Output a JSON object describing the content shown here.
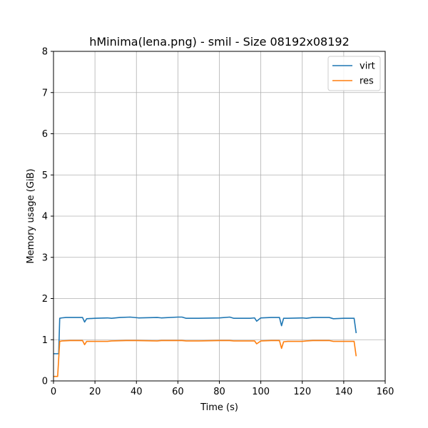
{
  "chart_data": {
    "type": "line",
    "title": "hMinima(lena.png) - smil - Size 08192x08192",
    "xlabel": "Time (s)",
    "ylabel": "Memory usage (GiB)",
    "xlim": [
      0,
      160
    ],
    "ylim": [
      0,
      8
    ],
    "xticks": [
      0,
      20,
      40,
      60,
      80,
      100,
      120,
      140,
      160
    ],
    "yticks": [
      0,
      1,
      2,
      3,
      4,
      5,
      6,
      7,
      8
    ],
    "xtick_labels": [
      "0",
      "20",
      "40",
      "60",
      "80",
      "100",
      "120",
      "140",
      "160"
    ],
    "ytick_labels": [
      "0",
      "1",
      "2",
      "3",
      "4",
      "5",
      "6",
      "7",
      "8"
    ],
    "grid": true,
    "legend_position": "top-right",
    "series": [
      {
        "name": "virt",
        "color": "#1f77b4",
        "x": [
          0,
          2.5,
          3,
          4,
          6,
          10,
          14,
          15,
          16,
          20,
          26,
          28,
          32,
          37,
          41,
          50,
          52,
          60,
          62,
          64,
          70,
          80,
          85,
          87,
          95,
          97,
          98,
          100,
          105,
          109,
          110,
          111,
          113,
          120,
          122,
          125,
          133,
          135,
          140,
          145,
          146
        ],
        "y": [
          0.66,
          0.66,
          1.52,
          1.53,
          1.54,
          1.54,
          1.54,
          1.43,
          1.51,
          1.52,
          1.53,
          1.52,
          1.54,
          1.55,
          1.53,
          1.54,
          1.53,
          1.55,
          1.55,
          1.52,
          1.52,
          1.53,
          1.55,
          1.52,
          1.52,
          1.53,
          1.45,
          1.53,
          1.54,
          1.54,
          1.34,
          1.52,
          1.52,
          1.53,
          1.52,
          1.54,
          1.54,
          1.51,
          1.52,
          1.52,
          1.16
        ]
      },
      {
        "name": "res",
        "color": "#ff7f0e",
        "x": [
          0,
          2,
          3,
          4,
          8,
          14,
          15,
          16,
          20,
          26,
          28,
          35,
          40,
          50,
          52,
          60,
          62,
          64,
          70,
          80,
          85,
          87,
          95,
          97,
          98,
          100,
          105,
          109,
          110,
          111,
          113,
          120,
          122,
          125,
          133,
          135,
          140,
          145,
          146
        ],
        "y": [
          0.11,
          0.11,
          0.96,
          0.97,
          0.98,
          0.98,
          0.88,
          0.96,
          0.96,
          0.96,
          0.97,
          0.98,
          0.98,
          0.97,
          0.98,
          0.98,
          0.98,
          0.97,
          0.97,
          0.98,
          0.98,
          0.97,
          0.97,
          0.97,
          0.9,
          0.97,
          0.98,
          0.98,
          0.79,
          0.95,
          0.96,
          0.96,
          0.97,
          0.98,
          0.98,
          0.96,
          0.96,
          0.96,
          0.6
        ]
      }
    ]
  }
}
